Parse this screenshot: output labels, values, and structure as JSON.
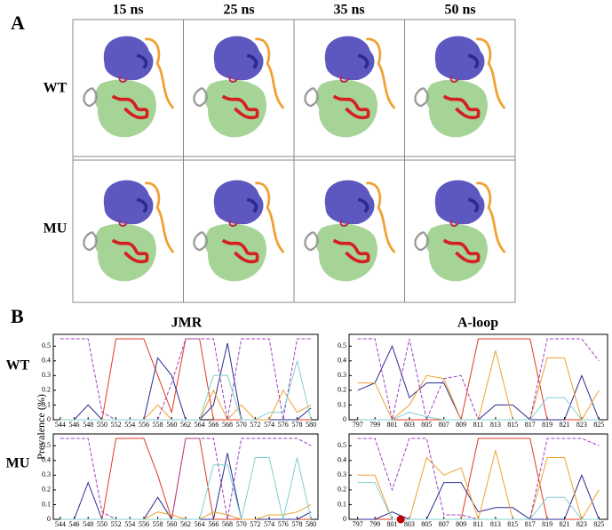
{
  "panel_a": {
    "label": "A",
    "columns": [
      "15 ns",
      "25 ns",
      "35 ns",
      "50 ns"
    ],
    "rows": [
      "WT",
      "MU"
    ]
  },
  "panel_b": {
    "label": "B",
    "columns": [
      "JMR",
      "A-loop"
    ],
    "rows": [
      "WT",
      "MU"
    ],
    "ylabel": "Prevalence (%)"
  },
  "chart_data": [
    {
      "type": "line",
      "x": [
        544,
        546,
        548,
        550,
        552,
        554,
        556,
        558,
        560,
        562,
        564,
        566,
        568,
        570,
        572,
        574,
        576,
        578,
        580
      ],
      "xlim": [
        543,
        581
      ],
      "ylim": [
        0,
        0.58
      ],
      "yticks": [
        0,
        0.1,
        0.2,
        0.3,
        0.4,
        0.5
      ],
      "xticks": [
        544,
        546,
        548,
        550,
        552,
        554,
        556,
        558,
        560,
        562,
        564,
        566,
        568,
        570,
        572,
        574,
        576,
        578,
        580
      ],
      "series": [
        {
          "color": "#e03a1e",
          "values": [
            0,
            0,
            0,
            0,
            0.55,
            0.55,
            0.55,
            0.3,
            0.05,
            0.55,
            0.55,
            0,
            0,
            0,
            0,
            0,
            0,
            0,
            0
          ]
        },
        {
          "color": "#2b2b8f",
          "values": [
            0,
            0,
            0.1,
            0,
            0,
            0,
            0,
            0.42,
            0.3,
            0,
            0,
            0.1,
            0.52,
            0,
            0,
            0,
            0,
            0,
            0.08
          ]
        },
        {
          "color": "#f0a030",
          "values": [
            0,
            0,
            0,
            0,
            0,
            0,
            0,
            0.1,
            0,
            0,
            0,
            0.2,
            0,
            0.1,
            0,
            0,
            0.2,
            0.05,
            0.1
          ]
        },
        {
          "color": "#a040c0",
          "dash": true,
          "values": [
            0.55,
            0.55,
            0.55,
            0.05,
            0,
            0,
            0,
            0,
            0.25,
            0.55,
            0.55,
            0.55,
            0,
            0.55,
            0.55,
            0.55,
            0,
            0.55,
            0.55
          ]
        },
        {
          "color": "#80d0d0",
          "values": [
            0,
            0,
            0,
            0,
            0,
            0,
            0,
            0,
            0,
            0,
            0,
            0.3,
            0.3,
            0,
            0,
            0.05,
            0.05,
            0.4,
            0
          ]
        }
      ]
    },
    {
      "type": "line",
      "x": [
        797,
        799,
        801,
        803,
        805,
        807,
        809,
        811,
        813,
        815,
        817,
        819,
        821,
        823,
        825
      ],
      "xlim": [
        796,
        826
      ],
      "ylim": [
        0,
        0.58
      ],
      "yticks": [
        0,
        0.1,
        0.2,
        0.3,
        0.4,
        0.5
      ],
      "xticks": [
        797,
        799,
        801,
        803,
        805,
        807,
        809,
        811,
        813,
        815,
        817,
        819,
        821,
        823,
        825
      ],
      "series": [
        {
          "color": "#e03a1e",
          "values": [
            0,
            0,
            0,
            0,
            0,
            0,
            0,
            0.55,
            0.55,
            0.55,
            0.55,
            0,
            0,
            0,
            0
          ]
        },
        {
          "color": "#2b2b8f",
          "values": [
            0.2,
            0.25,
            0.5,
            0.15,
            0.25,
            0.25,
            0,
            0,
            0.1,
            0.1,
            0,
            0,
            0,
            0.3,
            0
          ]
        },
        {
          "color": "#f0a030",
          "values": [
            0.25,
            0.25,
            0,
            0.1,
            0.3,
            0.28,
            0,
            0,
            0.47,
            0,
            0,
            0.42,
            0.42,
            0,
            0.2
          ]
        },
        {
          "color": "#a040c0",
          "dash": true,
          "values": [
            0.55,
            0.55,
            0,
            0.55,
            0,
            0.28,
            0.3,
            0,
            0,
            0,
            0,
            0.55,
            0.55,
            0.55,
            0.4
          ]
        },
        {
          "color": "#80d0d0",
          "values": [
            0,
            0,
            0,
            0.05,
            0.02,
            0,
            0,
            0,
            0,
            0,
            0,
            0.15,
            0.15,
            0,
            0
          ]
        }
      ]
    },
    {
      "type": "line",
      "x": [
        544,
        546,
        548,
        550,
        552,
        554,
        556,
        558,
        560,
        562,
        564,
        566,
        568,
        570,
        572,
        574,
        576,
        578,
        580
      ],
      "xlim": [
        543,
        581
      ],
      "ylim": [
        0,
        0.58
      ],
      "yticks": [
        0,
        0.1,
        0.2,
        0.3,
        0.4,
        0.5
      ],
      "xticks": [
        544,
        546,
        548,
        550,
        552,
        554,
        556,
        558,
        560,
        562,
        564,
        566,
        568,
        570,
        572,
        574,
        576,
        578,
        580
      ],
      "series": [
        {
          "color": "#e03a1e",
          "values": [
            0,
            0,
            0,
            0,
            0.55,
            0.55,
            0.55,
            0.3,
            0,
            0.55,
            0.55,
            0,
            0,
            0,
            0,
            0,
            0,
            0,
            0
          ]
        },
        {
          "color": "#2b2b8f",
          "values": [
            0,
            0,
            0.25,
            0,
            0,
            0,
            0,
            0.15,
            0,
            0,
            0,
            0,
            0.45,
            0,
            0,
            0,
            0,
            0,
            0.05
          ]
        },
        {
          "color": "#f0a030",
          "values": [
            0,
            0,
            0,
            0,
            0,
            0,
            0,
            0.05,
            0.03,
            0,
            0,
            0.05,
            0.03,
            0,
            0,
            0.03,
            0.03,
            0.05,
            0.1
          ]
        },
        {
          "color": "#a040c0",
          "dash": true,
          "values": [
            0.55,
            0.55,
            0.55,
            0.05,
            0,
            0,
            0,
            0,
            0,
            0.55,
            0.55,
            0.55,
            0,
            0.55,
            0.55,
            0.55,
            0.55,
            0.55,
            0.5
          ]
        },
        {
          "color": "#80d0d0",
          "values": [
            0,
            0,
            0,
            0,
            0,
            0,
            0,
            0,
            0,
            0,
            0,
            0.37,
            0.37,
            0,
            0.42,
            0.42,
            0,
            0.42,
            0
          ]
        }
      ]
    },
    {
      "type": "line",
      "x": [
        797,
        799,
        801,
        803,
        805,
        807,
        809,
        811,
        813,
        815,
        817,
        819,
        821,
        823,
        825
      ],
      "xlim": [
        796,
        826
      ],
      "ylim": [
        0,
        0.58
      ],
      "yticks": [
        0,
        0.1,
        0.2,
        0.3,
        0.4,
        0.5
      ],
      "xticks": [
        797,
        799,
        801,
        803,
        805,
        807,
        809,
        811,
        813,
        815,
        817,
        819,
        821,
        823,
        825
      ],
      "highlight": {
        "x": 802,
        "y": 0,
        "color": "#c00000"
      },
      "series": [
        {
          "color": "#e03a1e",
          "values": [
            0,
            0,
            0,
            0,
            0,
            0,
            0,
            0.55,
            0.55,
            0.55,
            0.55,
            0,
            0,
            0,
            0
          ]
        },
        {
          "color": "#2b2b8f",
          "values": [
            0,
            0,
            0.05,
            0,
            0,
            0.25,
            0.25,
            0.05,
            0.08,
            0.08,
            0,
            0,
            0,
            0.3,
            0
          ]
        },
        {
          "color": "#f0a030",
          "values": [
            0.3,
            0.3,
            0,
            0,
            0.42,
            0.3,
            0.35,
            0,
            0.47,
            0,
            0,
            0.42,
            0.42,
            0,
            0.2
          ]
        },
        {
          "color": "#a040c0",
          "dash": true,
          "values": [
            0.55,
            0.55,
            0.2,
            0.55,
            0.55,
            0.03,
            0.03,
            0,
            0,
            0,
            0,
            0.55,
            0.55,
            0.55,
            0.5
          ]
        },
        {
          "color": "#80d0d0",
          "values": [
            0.25,
            0.25,
            0,
            0,
            0,
            0,
            0,
            0,
            0,
            0,
            0,
            0.15,
            0.15,
            0,
            0
          ]
        }
      ]
    }
  ]
}
